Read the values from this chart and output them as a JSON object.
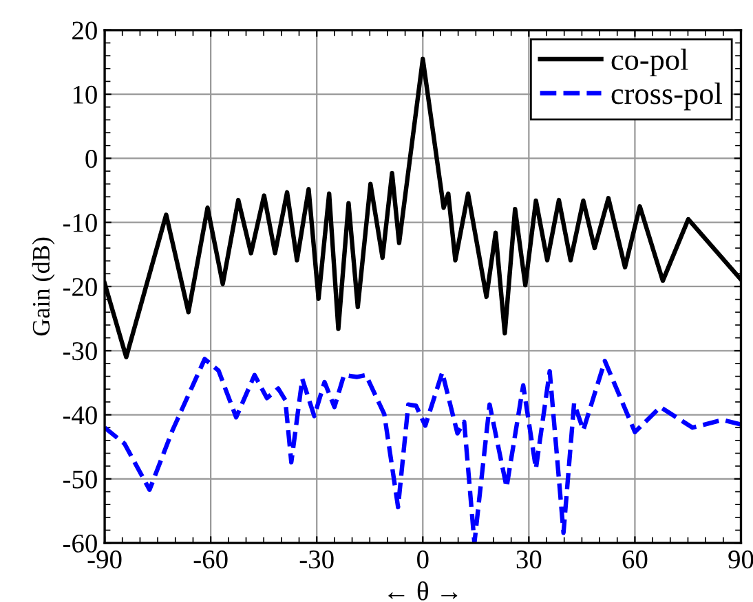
{
  "chart_data": {
    "type": "line",
    "xlabel": "← θ →",
    "ylabel": "Gain (dB)",
    "xlim": [
      -90,
      90
    ],
    "xticks": [
      -90,
      -60,
      -30,
      0,
      30,
      60,
      90
    ],
    "ylim": [
      -60,
      20
    ],
    "yticks": [
      -60,
      -50,
      -40,
      -30,
      -20,
      -10,
      0,
      10,
      20
    ],
    "grid": true,
    "legend": "top right",
    "series": [
      {
        "name": "co-pol",
        "color": "#000000",
        "line_style": "solid",
        "x": [
          -90,
          -83.9,
          -72.6,
          -66.3,
          -60.9,
          -56.6,
          -52.2,
          -48.6,
          -44.9,
          -41.8,
          -38.4,
          -35.6,
          -32.3,
          -29.5,
          -26.5,
          -23.9,
          -21.0,
          -18.4,
          -14.8,
          -11.4,
          -8.7,
          -6.7,
          0,
          5.9,
          7.2,
          9.2,
          12.8,
          18.0,
          20.6,
          23.2,
          26.1,
          29.0,
          32.0,
          35.2,
          38.5,
          41.8,
          45.4,
          48.6,
          52.5,
          57.2,
          61.4,
          67.9,
          75.1,
          90
        ],
        "values": [
          -19.5,
          -31,
          -8.8,
          -24,
          -7.7,
          -19.6,
          -6.5,
          -14.8,
          -5.8,
          -14.8,
          -5.3,
          -15.9,
          -4.8,
          -21.9,
          -5.5,
          -26.6,
          -7.0,
          -23.2,
          -4.0,
          -15.5,
          -2.3,
          -13.2,
          15.5,
          -7.7,
          -5.5,
          -15.9,
          -5.5,
          -21.6,
          -11.6,
          -27.3,
          -7.9,
          -19.8,
          -6.6,
          -15.9,
          -6.5,
          -15.9,
          -6.6,
          -14,
          -6.2,
          -17,
          -7.5,
          -19.1,
          -9.5,
          -18.9
        ]
      },
      {
        "name": "cross-pol",
        "color": "#0000ff",
        "line_style": "dashed",
        "x": [
          -90,
          -84.4,
          -77.3,
          -70.8,
          -61.7,
          -57.8,
          -52.8,
          -47.6,
          -44.1,
          -40.9,
          -38.9,
          -37.2,
          -34.1,
          -30.7,
          -27.8,
          -25.0,
          -22.3,
          -18.7,
          -16.1,
          -10.9,
          -7.0,
          -4.1,
          -1.9,
          0.7,
          5.5,
          9.8,
          11.7,
          14.6,
          18.9,
          23.7,
          28.4,
          32.0,
          35.9,
          39.8,
          42.8,
          45.4,
          51.5,
          60.0,
          67.2,
          76.3,
          84.8,
          90
        ],
        "values": [
          -42.0,
          -44.5,
          -51.7,
          -42.4,
          -31.3,
          -33.1,
          -40.4,
          -33.8,
          -37.4,
          -35.9,
          -37.7,
          -47.4,
          -34.4,
          -40.2,
          -34.9,
          -38.8,
          -33.8,
          -34.1,
          -33.8,
          -39.9,
          -54.4,
          -38.4,
          -38.6,
          -41.7,
          -33.4,
          -42.9,
          -41.1,
          -60,
          -38.4,
          -51.3,
          -35.4,
          -48.4,
          -33.2,
          -58.4,
          -38.2,
          -42.4,
          -31.6,
          -42.7,
          -38.8,
          -42.0,
          -40.8,
          -41.5
        ]
      }
    ]
  }
}
